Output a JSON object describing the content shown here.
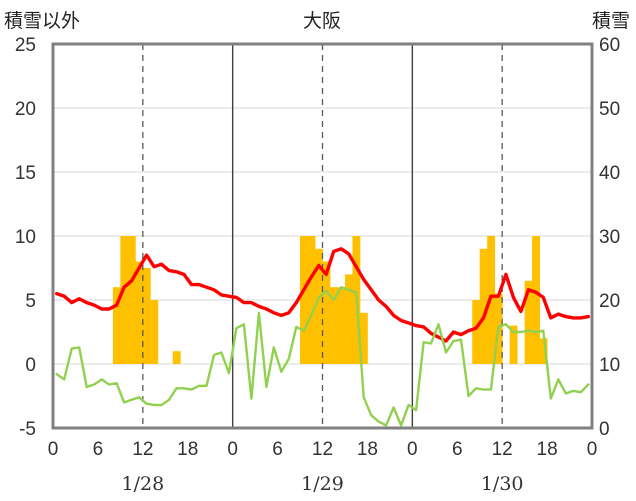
{
  "chart_data": {
    "type": "bar",
    "title": "大阪",
    "ylabel_left": "積雪以外",
    "ylabel_right": "積雪",
    "y_left": {
      "min": -5,
      "max": 25,
      "ticks": [
        -5,
        0,
        5,
        10,
        15,
        20,
        25
      ]
    },
    "y_right": {
      "min": 0,
      "max": 60,
      "ticks": [
        0,
        10,
        20,
        30,
        40,
        50,
        60
      ]
    },
    "x": {
      "min": 0,
      "max": 72,
      "tick_hours": [
        0,
        6,
        12,
        18,
        24,
        30,
        36,
        42,
        48,
        54,
        60,
        66,
        72
      ],
      "tick_labels": [
        "0",
        "6",
        "12",
        "18",
        "0",
        "6",
        "12",
        "18",
        "0",
        "6",
        "12",
        "18",
        "0"
      ],
      "day_labels": [
        {
          "at_hour": 12,
          "text": "1/28"
        },
        {
          "at_hour": 36,
          "text": "1/29"
        },
        {
          "at_hour": 60,
          "text": "1/30"
        }
      ],
      "day_separators": [
        24,
        48
      ],
      "dashed_noon_lines": [
        12,
        36,
        60
      ]
    },
    "colors": {
      "bars": "#ffc000",
      "red_line": "#ff0000",
      "green_line": "#92d050",
      "purple_line": "#7030a0",
      "frame": "#808080",
      "separator": "#404040"
    },
    "series": [
      {
        "kind": "bar",
        "axis": "left",
        "color": "#ffc000",
        "points": [
          [
            8,
            6
          ],
          [
            9,
            10
          ],
          [
            10,
            10
          ],
          [
            11,
            8
          ],
          [
            12,
            7.5
          ],
          [
            13,
            5
          ],
          [
            16,
            1
          ],
          [
            33,
            10
          ],
          [
            34,
            10
          ],
          [
            35,
            9
          ],
          [
            36,
            8
          ],
          [
            37,
            6
          ],
          [
            38,
            6
          ],
          [
            39,
            7
          ],
          [
            40,
            10
          ],
          [
            41,
            4
          ],
          [
            56,
            5
          ],
          [
            57,
            9
          ],
          [
            58,
            10
          ],
          [
            59,
            5.5
          ],
          [
            61,
            3
          ],
          [
            63,
            6.5
          ],
          [
            64,
            10
          ],
          [
            65,
            2
          ]
        ]
      },
      {
        "kind": "line",
        "axis": "left",
        "color": "#ff0000",
        "points": [
          [
            0,
            5.5
          ],
          [
            1,
            5.3
          ],
          [
            2,
            4.8
          ],
          [
            3,
            5.1
          ],
          [
            4,
            4.8
          ],
          [
            5,
            4.6
          ],
          [
            6,
            4.3
          ],
          [
            7,
            4.3
          ],
          [
            8,
            4.6
          ],
          [
            9,
            6.0
          ],
          [
            10,
            6.5
          ],
          [
            11,
            7.5
          ],
          [
            12,
            8.5
          ],
          [
            13,
            7.6
          ],
          [
            14,
            7.8
          ],
          [
            15,
            7.3
          ],
          [
            16,
            7.2
          ],
          [
            17,
            7.0
          ],
          [
            18,
            6.2
          ],
          [
            19,
            6.2
          ],
          [
            20,
            6.0
          ],
          [
            21,
            5.8
          ],
          [
            22,
            5.4
          ],
          [
            23,
            5.3
          ],
          [
            24,
            5.2
          ],
          [
            25,
            4.8
          ],
          [
            26,
            4.8
          ],
          [
            27,
            4.5
          ],
          [
            28,
            4.3
          ],
          [
            29,
            4.0
          ],
          [
            30,
            3.8
          ],
          [
            31,
            4.0
          ],
          [
            32,
            4.8
          ],
          [
            33,
            5.8
          ],
          [
            34,
            6.8
          ],
          [
            35,
            7.7
          ],
          [
            36,
            7.0
          ],
          [
            37,
            8.8
          ],
          [
            38,
            9.0
          ],
          [
            39,
            8.6
          ],
          [
            40,
            7.6
          ],
          [
            41,
            6.6
          ],
          [
            42,
            5.8
          ],
          [
            43,
            5.0
          ],
          [
            44,
            4.5
          ],
          [
            45,
            3.8
          ],
          [
            46,
            3.4
          ],
          [
            47,
            3.2
          ],
          [
            48,
            3.0
          ],
          [
            49,
            2.9
          ],
          [
            50,
            2.4
          ],
          [
            51,
            2.1
          ],
          [
            52,
            1.8
          ],
          [
            53,
            2.5
          ],
          [
            54,
            2.3
          ],
          [
            55,
            2.6
          ],
          [
            56,
            2.8
          ],
          [
            57,
            3.6
          ],
          [
            58,
            5.3
          ],
          [
            59,
            5.3
          ],
          [
            60,
            7.0
          ],
          [
            61,
            5.2
          ],
          [
            62,
            4.1
          ],
          [
            63,
            5.8
          ],
          [
            64,
            5.6
          ],
          [
            65,
            5.2
          ],
          [
            66,
            3.6
          ],
          [
            67,
            3.9
          ],
          [
            68,
            3.7
          ],
          [
            69,
            3.6
          ],
          [
            70,
            3.6
          ],
          [
            71,
            3.7
          ]
        ]
      },
      {
        "kind": "line",
        "axis": "left",
        "color": "#92d050",
        "points": [
          [
            0,
            -0.8
          ],
          [
            1,
            -1.2
          ],
          [
            2,
            1.2
          ],
          [
            3,
            1.3
          ],
          [
            4,
            -1.8
          ],
          [
            5,
            -1.6
          ],
          [
            6,
            -1.2
          ],
          [
            7,
            -1.6
          ],
          [
            8,
            -1.5
          ],
          [
            9,
            -3.0
          ],
          [
            10,
            -2.8
          ],
          [
            11,
            -2.6
          ],
          [
            12,
            -3.1
          ],
          [
            13,
            -3.2
          ],
          [
            14,
            -3.2
          ],
          [
            15,
            -2.8
          ],
          [
            16,
            -1.9
          ],
          [
            17,
            -1.9
          ],
          [
            18,
            -2.0
          ],
          [
            19,
            -1.7
          ],
          [
            20,
            -1.7
          ],
          [
            21,
            0.7
          ],
          [
            22,
            0.9
          ],
          [
            23,
            -0.7
          ],
          [
            24,
            2.8
          ],
          [
            25,
            3.1
          ],
          [
            26,
            -2.7
          ],
          [
            27,
            4.0
          ],
          [
            28,
            -1.8
          ],
          [
            29,
            1.3
          ],
          [
            30,
            -0.6
          ],
          [
            31,
            0.4
          ],
          [
            32,
            2.9
          ],
          [
            33,
            2.6
          ],
          [
            34,
            3.8
          ],
          [
            35,
            5.2
          ],
          [
            36,
            5.7
          ],
          [
            37,
            5.0
          ],
          [
            38,
            6.0
          ],
          [
            39,
            5.8
          ],
          [
            40,
            5.6
          ],
          [
            41,
            -2.6
          ],
          [
            42,
            -4.0
          ],
          [
            43,
            -4.5
          ],
          [
            44,
            -4.8
          ],
          [
            45,
            -3.4
          ],
          [
            46,
            -4.8
          ],
          [
            47,
            -3.2
          ],
          [
            48,
            -3.6
          ],
          [
            49,
            1.7
          ],
          [
            50,
            1.6
          ],
          [
            51,
            3.1
          ],
          [
            52,
            0.9
          ],
          [
            53,
            1.8
          ],
          [
            54,
            1.9
          ],
          [
            55,
            -2.5
          ],
          [
            56,
            -1.9
          ],
          [
            57,
            -2.0
          ],
          [
            58,
            -2.0
          ],
          [
            59,
            2.9
          ],
          [
            60,
            3.1
          ],
          [
            61,
            2.5
          ],
          [
            62,
            2.5
          ],
          [
            63,
            2.6
          ],
          [
            64,
            2.5
          ],
          [
            65,
            2.6
          ],
          [
            66,
            -2.7
          ],
          [
            67,
            -1.2
          ],
          [
            68,
            -2.3
          ],
          [
            69,
            -2.1
          ],
          [
            70,
            -2.2
          ],
          [
            71,
            -1.6
          ]
        ]
      },
      {
        "kind": "line",
        "axis": "left",
        "color": "#7030a0",
        "points": [
          [
            0,
            -5
          ],
          [
            72,
            -5
          ]
        ]
      }
    ]
  }
}
